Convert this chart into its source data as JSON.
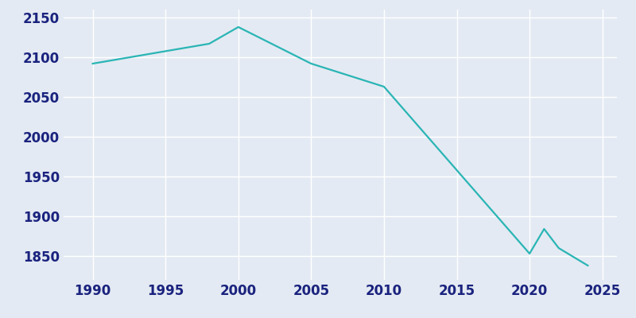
{
  "years": [
    1990,
    1998,
    2000,
    2005,
    2010,
    2020,
    2021,
    2022,
    2024
  ],
  "population": [
    2092,
    2117,
    2138,
    2092,
    2063,
    1853,
    1884,
    1860,
    1838
  ],
  "line_color": "#2ab5b5",
  "background_color": "#e4eaf3",
  "grid_color": "#ffffff",
  "text_color": "#1a237e",
  "xlim": [
    1988,
    2026
  ],
  "ylim": [
    1820,
    2160
  ],
  "xticks": [
    1990,
    1995,
    2000,
    2005,
    2010,
    2015,
    2020,
    2025
  ],
  "yticks": [
    1850,
    1900,
    1950,
    2000,
    2050,
    2100,
    2150
  ],
  "linewidth": 1.6,
  "tick_fontsize": 12
}
